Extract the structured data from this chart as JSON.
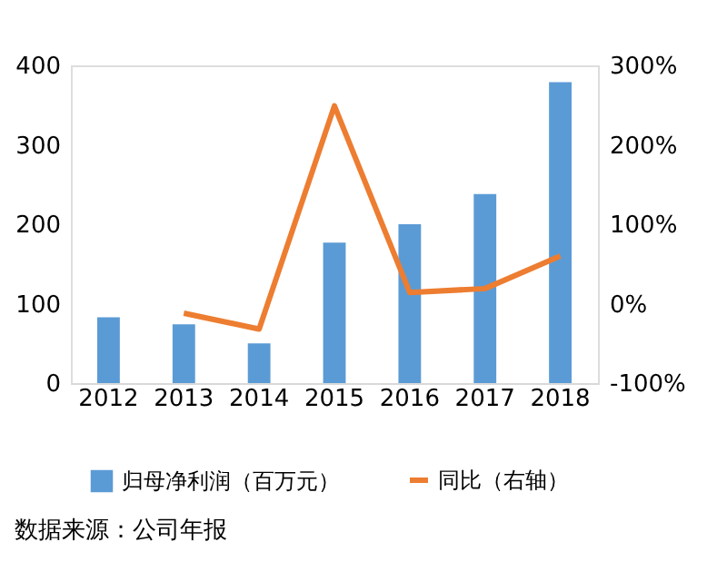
{
  "chart_data": {
    "type": "bar",
    "categories": [
      "2012",
      "2013",
      "2014",
      "2015",
      "2016",
      "2017",
      "2018"
    ],
    "series": [
      {
        "name": "归母净利润（百万元）",
        "color": "#5b9bd5",
        "values": [
          83,
          74,
          50,
          177,
          200,
          238,
          379
        ]
      },
      {
        "name": "同比（右轴）",
        "type": "line",
        "axis": "y2",
        "color": "#ed7d31",
        "values": [
          null,
          -12,
          -32,
          249,
          14,
          19,
          60
        ]
      }
    ],
    "ylim": [
      0,
      400
    ],
    "yticks": [
      0,
      100,
      200,
      300,
      400
    ],
    "y2lim": [
      -100,
      300
    ],
    "y2ticks": [
      {
        "value": -100,
        "label": "-100%"
      },
      {
        "value": 0,
        "label": "0%"
      },
      {
        "value": 100,
        "label": "100%"
      },
      {
        "value": 200,
        "label": "200%"
      },
      {
        "value": 300,
        "label": "300%"
      }
    ],
    "grid": false,
    "legend": "bottom",
    "marker": "none",
    "line_style": "solid",
    "annotations": [
      "数据来源：公司年报"
    ]
  }
}
